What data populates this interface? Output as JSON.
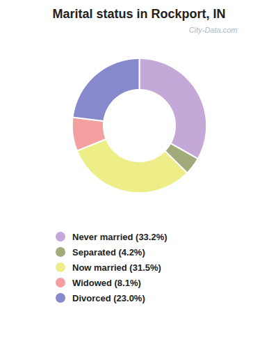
{
  "chart_data": {
    "type": "pie",
    "title": "Marital status in Rockport, IN",
    "categories": [
      "Never married (33.2%)",
      "Separated (4.2%)",
      "Now married (31.5%)",
      "Widowed (8.1%)",
      "Divorced (23.0%)"
    ],
    "values": [
      33.2,
      4.2,
      31.5,
      8.1,
      23.0
    ],
    "colors": [
      "#c4a8d8",
      "#a0aa7a",
      "#eeee88",
      "#f4a0a0",
      "#8888cc"
    ],
    "legend": "bottom",
    "annotations": [
      "City-Data.com"
    ]
  }
}
